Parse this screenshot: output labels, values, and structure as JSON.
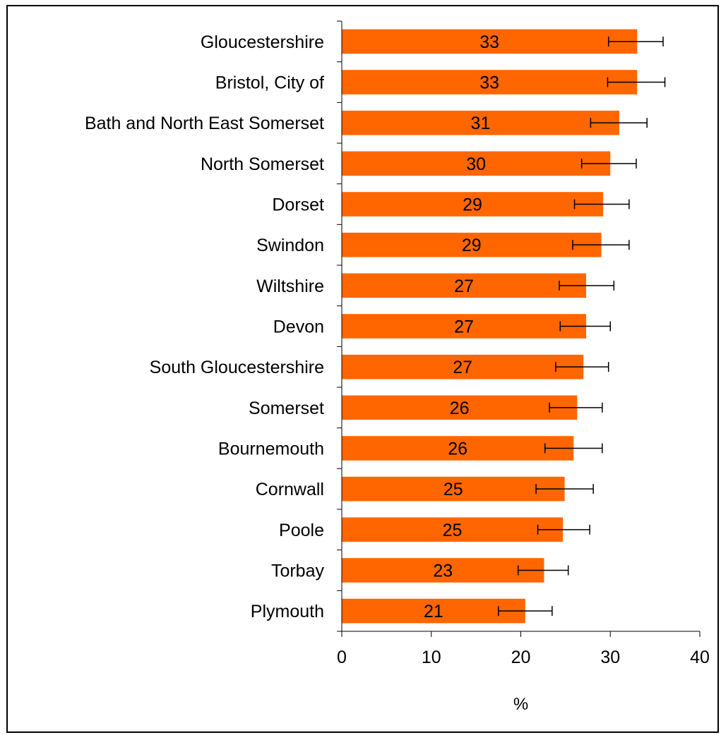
{
  "chart_data": {
    "type": "bar",
    "orientation": "horizontal",
    "categories": [
      "Gloucestershire",
      "Bristol, City of",
      "Bath and North East Somerset",
      "North Somerset",
      "Dorset",
      "Swindon",
      "Wiltshire",
      "Devon",
      "South Gloucestershire",
      "Somerset",
      "Bournemouth",
      "Cornwall",
      "Poole",
      "Torbay",
      "Plymouth"
    ],
    "values": [
      33.0,
      33.0,
      31.0,
      30.0,
      29.2,
      29.0,
      27.3,
      27.3,
      27.0,
      26.3,
      25.9,
      24.9,
      24.7,
      22.6,
      20.5
    ],
    "value_labels": [
      "33",
      "33",
      "31",
      "30",
      "29",
      "29",
      "27",
      "27",
      "27",
      "26",
      "26",
      "25",
      "25",
      "23",
      "21"
    ],
    "error_low": [
      29.8,
      29.7,
      27.8,
      26.8,
      26.0,
      25.8,
      24.3,
      24.4,
      23.9,
      23.2,
      22.7,
      21.7,
      21.9,
      19.7,
      17.5
    ],
    "error_high": [
      35.9,
      36.1,
      34.1,
      32.9,
      32.1,
      32.1,
      30.4,
      30.0,
      29.8,
      29.1,
      29.1,
      28.1,
      27.7,
      25.3,
      23.5
    ],
    "xlabel": "%",
    "ylabel": "",
    "title": "",
    "xlim": [
      0,
      40
    ],
    "xticks": [
      "0",
      "10",
      "20",
      "30",
      "40"
    ],
    "grid": false,
    "bar_color": "#ff6600"
  }
}
